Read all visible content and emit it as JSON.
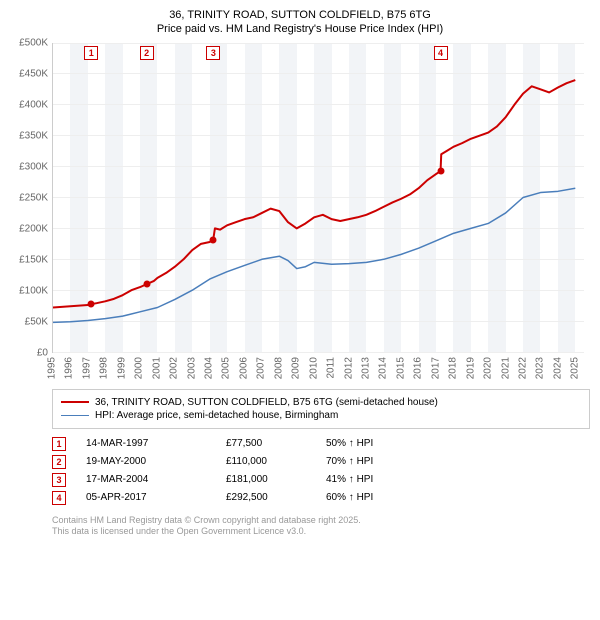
{
  "title": {
    "line1": "36, TRINITY ROAD, SUTTON COLDFIELD, B75 6TG",
    "line2": "Price paid vs. HM Land Registry's House Price Index (HPI)"
  },
  "chart": {
    "type": "line",
    "background_color": "#ffffff",
    "band_color": "#f2f4f7",
    "grid_color": "#eeeeee",
    "axis_color": "#cccccc",
    "text_color": "#666666",
    "label_fontsize": 10,
    "x": {
      "min": 1995,
      "max": 2025.5,
      "ticks": [
        1995,
        1996,
        1997,
        1998,
        1999,
        2000,
        2001,
        2002,
        2003,
        2004,
        2005,
        2006,
        2007,
        2008,
        2009,
        2010,
        2011,
        2012,
        2013,
        2014,
        2015,
        2016,
        2017,
        2018,
        2019,
        2020,
        2021,
        2022,
        2023,
        2024,
        2025
      ]
    },
    "y": {
      "min": 0,
      "max": 500000,
      "ticks": [
        0,
        50000,
        100000,
        150000,
        200000,
        250000,
        300000,
        350000,
        400000,
        450000,
        500000
      ],
      "labels": [
        "£0",
        "£50K",
        "£100K",
        "£150K",
        "£200K",
        "£250K",
        "£300K",
        "£350K",
        "£400K",
        "£450K",
        "£500K"
      ]
    },
    "series": [
      {
        "name": "36, TRINITY ROAD, SUTTON COLDFIELD, B75 6TG (semi-detached house)",
        "color": "#cc0000",
        "line_width": 2,
        "data": [
          [
            1995,
            72000
          ],
          [
            1995.5,
            73000
          ],
          [
            1996,
            74000
          ],
          [
            1996.5,
            75000
          ],
          [
            1997,
            76000
          ],
          [
            1997.2,
            77500
          ],
          [
            1997.5,
            79000
          ],
          [
            1998,
            82000
          ],
          [
            1998.5,
            86000
          ],
          [
            1999,
            92000
          ],
          [
            1999.5,
            100000
          ],
          [
            2000,
            105000
          ],
          [
            2000.4,
            110000
          ],
          [
            2000.8,
            115000
          ],
          [
            2001,
            120000
          ],
          [
            2001.5,
            128000
          ],
          [
            2002,
            138000
          ],
          [
            2002.5,
            150000
          ],
          [
            2003,
            165000
          ],
          [
            2003.5,
            175000
          ],
          [
            2004,
            178000
          ],
          [
            2004.2,
            181000
          ],
          [
            2004.3,
            200000
          ],
          [
            2004.6,
            198000
          ],
          [
            2005,
            205000
          ],
          [
            2005.5,
            210000
          ],
          [
            2006,
            215000
          ],
          [
            2006.5,
            218000
          ],
          [
            2007,
            225000
          ],
          [
            2007.5,
            232000
          ],
          [
            2008,
            228000
          ],
          [
            2008.5,
            210000
          ],
          [
            2009,
            200000
          ],
          [
            2009.5,
            208000
          ],
          [
            2010,
            218000
          ],
          [
            2010.5,
            222000
          ],
          [
            2011,
            215000
          ],
          [
            2011.5,
            212000
          ],
          [
            2012,
            215000
          ],
          [
            2012.5,
            218000
          ],
          [
            2013,
            222000
          ],
          [
            2013.5,
            228000
          ],
          [
            2014,
            235000
          ],
          [
            2014.5,
            242000
          ],
          [
            2015,
            248000
          ],
          [
            2015.5,
            255000
          ],
          [
            2016,
            265000
          ],
          [
            2016.5,
            278000
          ],
          [
            2017,
            288000
          ],
          [
            2017.26,
            292500
          ],
          [
            2017.3,
            320000
          ],
          [
            2017.6,
            325000
          ],
          [
            2018,
            332000
          ],
          [
            2018.5,
            338000
          ],
          [
            2019,
            345000
          ],
          [
            2019.5,
            350000
          ],
          [
            2020,
            355000
          ],
          [
            2020.5,
            365000
          ],
          [
            2021,
            380000
          ],
          [
            2021.5,
            400000
          ],
          [
            2022,
            418000
          ],
          [
            2022.5,
            430000
          ],
          [
            2023,
            425000
          ],
          [
            2023.5,
            420000
          ],
          [
            2024,
            428000
          ],
          [
            2024.5,
            435000
          ],
          [
            2025,
            440000
          ]
        ]
      },
      {
        "name": "HPI: Average price, semi-detached house, Birmingham",
        "color": "#4a7ebb",
        "line_width": 1.5,
        "data": [
          [
            1995,
            48000
          ],
          [
            1996,
            49000
          ],
          [
            1997,
            51000
          ],
          [
            1998,
            54000
          ],
          [
            1999,
            58000
          ],
          [
            2000,
            65000
          ],
          [
            2001,
            72000
          ],
          [
            2002,
            85000
          ],
          [
            2003,
            100000
          ],
          [
            2004,
            118000
          ],
          [
            2005,
            130000
          ],
          [
            2006,
            140000
          ],
          [
            2007,
            150000
          ],
          [
            2008,
            155000
          ],
          [
            2008.5,
            148000
          ],
          [
            2009,
            135000
          ],
          [
            2009.5,
            138000
          ],
          [
            2010,
            145000
          ],
          [
            2011,
            142000
          ],
          [
            2012,
            143000
          ],
          [
            2013,
            145000
          ],
          [
            2014,
            150000
          ],
          [
            2015,
            158000
          ],
          [
            2016,
            168000
          ],
          [
            2017,
            180000
          ],
          [
            2018,
            192000
          ],
          [
            2019,
            200000
          ],
          [
            2020,
            208000
          ],
          [
            2021,
            225000
          ],
          [
            2022,
            250000
          ],
          [
            2023,
            258000
          ],
          [
            2024,
            260000
          ],
          [
            2025,
            265000
          ]
        ]
      }
    ],
    "sale_markers": [
      {
        "n": "1",
        "x": 1997.2,
        "y": 77500
      },
      {
        "n": "2",
        "x": 2000.38,
        "y": 110000
      },
      {
        "n": "3",
        "x": 2004.21,
        "y": 181000
      },
      {
        "n": "4",
        "x": 2017.26,
        "y": 292500
      }
    ]
  },
  "legend": {
    "items": [
      {
        "color": "#cc0000",
        "width": 2,
        "label": "36, TRINITY ROAD, SUTTON COLDFIELD, B75 6TG (semi-detached house)"
      },
      {
        "color": "#4a7ebb",
        "width": 1.5,
        "label": "HPI: Average price, semi-detached house, Birmingham"
      }
    ]
  },
  "sales": [
    {
      "n": "1",
      "date": "14-MAR-1997",
      "price": "£77,500",
      "pct": "50% ↑ HPI"
    },
    {
      "n": "2",
      "date": "19-MAY-2000",
      "price": "£110,000",
      "pct": "70% ↑ HPI"
    },
    {
      "n": "3",
      "date": "17-MAR-2004",
      "price": "£181,000",
      "pct": "41% ↑ HPI"
    },
    {
      "n": "4",
      "date": "05-APR-2017",
      "price": "£292,500",
      "pct": "60% ↑ HPI"
    }
  ],
  "footer": {
    "line1": "Contains HM Land Registry data © Crown copyright and database right 2025.",
    "line2": "This data is licensed under the Open Government Licence v3.0."
  }
}
